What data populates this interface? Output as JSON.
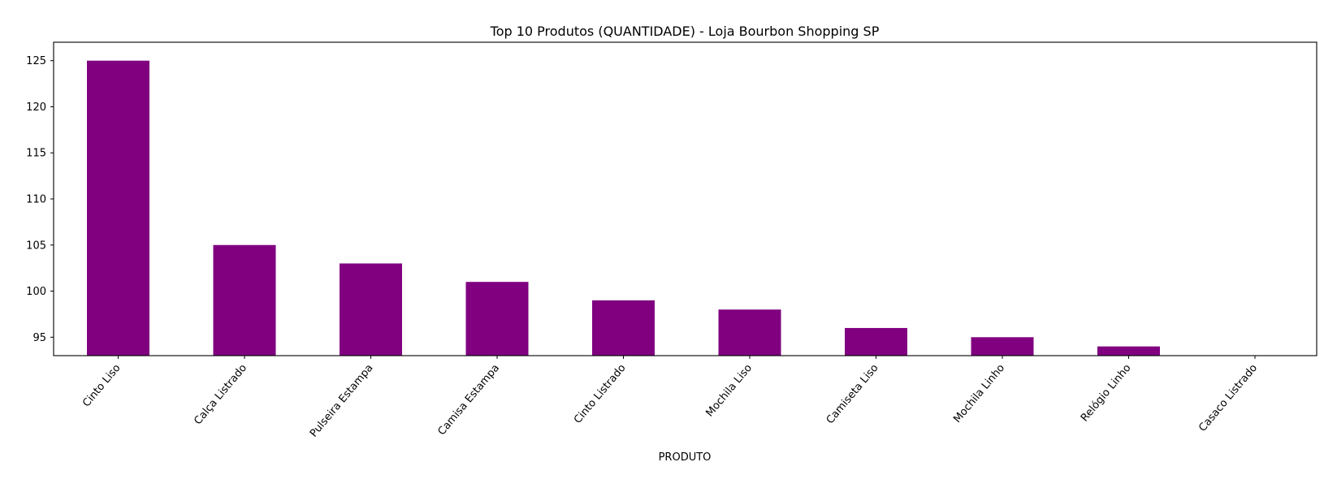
{
  "chart_data": {
    "type": "bar",
    "title": "Top 10 Produtos (QUANTIDADE) - Loja Bourbon Shopping SP",
    "xlabel": "PRODUTO",
    "ylabel": "",
    "categories": [
      "Cinto Liso",
      "Calça Listrado",
      "Pulseira Estampa",
      "Camisa Estampa",
      "Cinto Listrado",
      "Mochila Liso",
      "Camiseta Liso",
      "Mochila Linho",
      "Relógio Linho",
      "Casaco Listrado"
    ],
    "values": [
      125,
      105,
      103,
      101,
      99,
      98,
      96,
      95,
      94,
      93
    ],
    "ylim": [
      93,
      127
    ],
    "yticks": [
      95,
      100,
      105,
      110,
      115,
      120,
      125
    ],
    "bar_color": "#800080",
    "grid": false,
    "legend": "none"
  }
}
